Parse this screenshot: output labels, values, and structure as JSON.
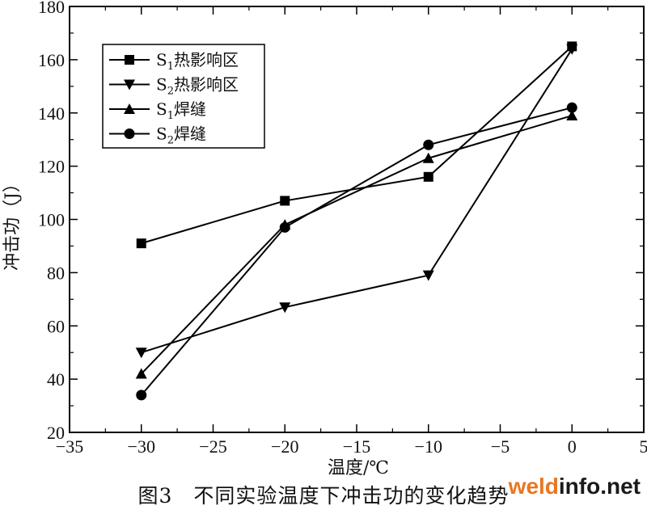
{
  "chart_data": {
    "type": "line",
    "title": "",
    "xlabel": "温度/℃",
    "ylabel": "冲击功（J）",
    "xlim": [
      -35,
      5
    ],
    "ylim": [
      20,
      180
    ],
    "xticks": [
      -35,
      -30,
      -25,
      -20,
      -15,
      -10,
      -5,
      0,
      5
    ],
    "yticks": [
      20,
      40,
      60,
      80,
      100,
      120,
      140,
      160,
      180
    ],
    "xtick_labels": [
      "−35",
      "−30",
      "−25",
      "−20",
      "−15",
      "−10",
      "−5",
      "0",
      "5"
    ],
    "ytick_labels": [
      "20",
      "40",
      "60",
      "80",
      "100",
      "120",
      "140",
      "160",
      "180"
    ],
    "x": [
      -30,
      -20,
      -10,
      0
    ],
    "legend_position": "top-left",
    "grid": false,
    "series": [
      {
        "name": "S1热影响区",
        "name_main": "S",
        "name_sub": "1",
        "name_rest": "热影响区",
        "marker": "square",
        "values": [
          91,
          107,
          116,
          165
        ]
      },
      {
        "name": "S2热影响区",
        "name_main": "S",
        "name_sub": "2",
        "name_rest": "热影响区",
        "marker": "triangle-down",
        "values": [
          50,
          67,
          79,
          164
        ]
      },
      {
        "name": "S1焊缝",
        "name_main": "S",
        "name_sub": "1",
        "name_rest": "焊缝",
        "marker": "triangle-up",
        "values": [
          42,
          98,
          123,
          139
        ]
      },
      {
        "name": "S2焊缝",
        "name_main": "S",
        "name_sub": "2",
        "name_rest": "焊缝",
        "marker": "circle",
        "values": [
          34,
          97,
          128,
          142
        ]
      }
    ]
  },
  "caption": "图3　不同实验温度下冲击功的变化趋势",
  "watermark": {
    "part1": "weld",
    "part2": "info.net"
  },
  "colors": {
    "line": "#000000",
    "watermark_orange": "#e87722"
  }
}
